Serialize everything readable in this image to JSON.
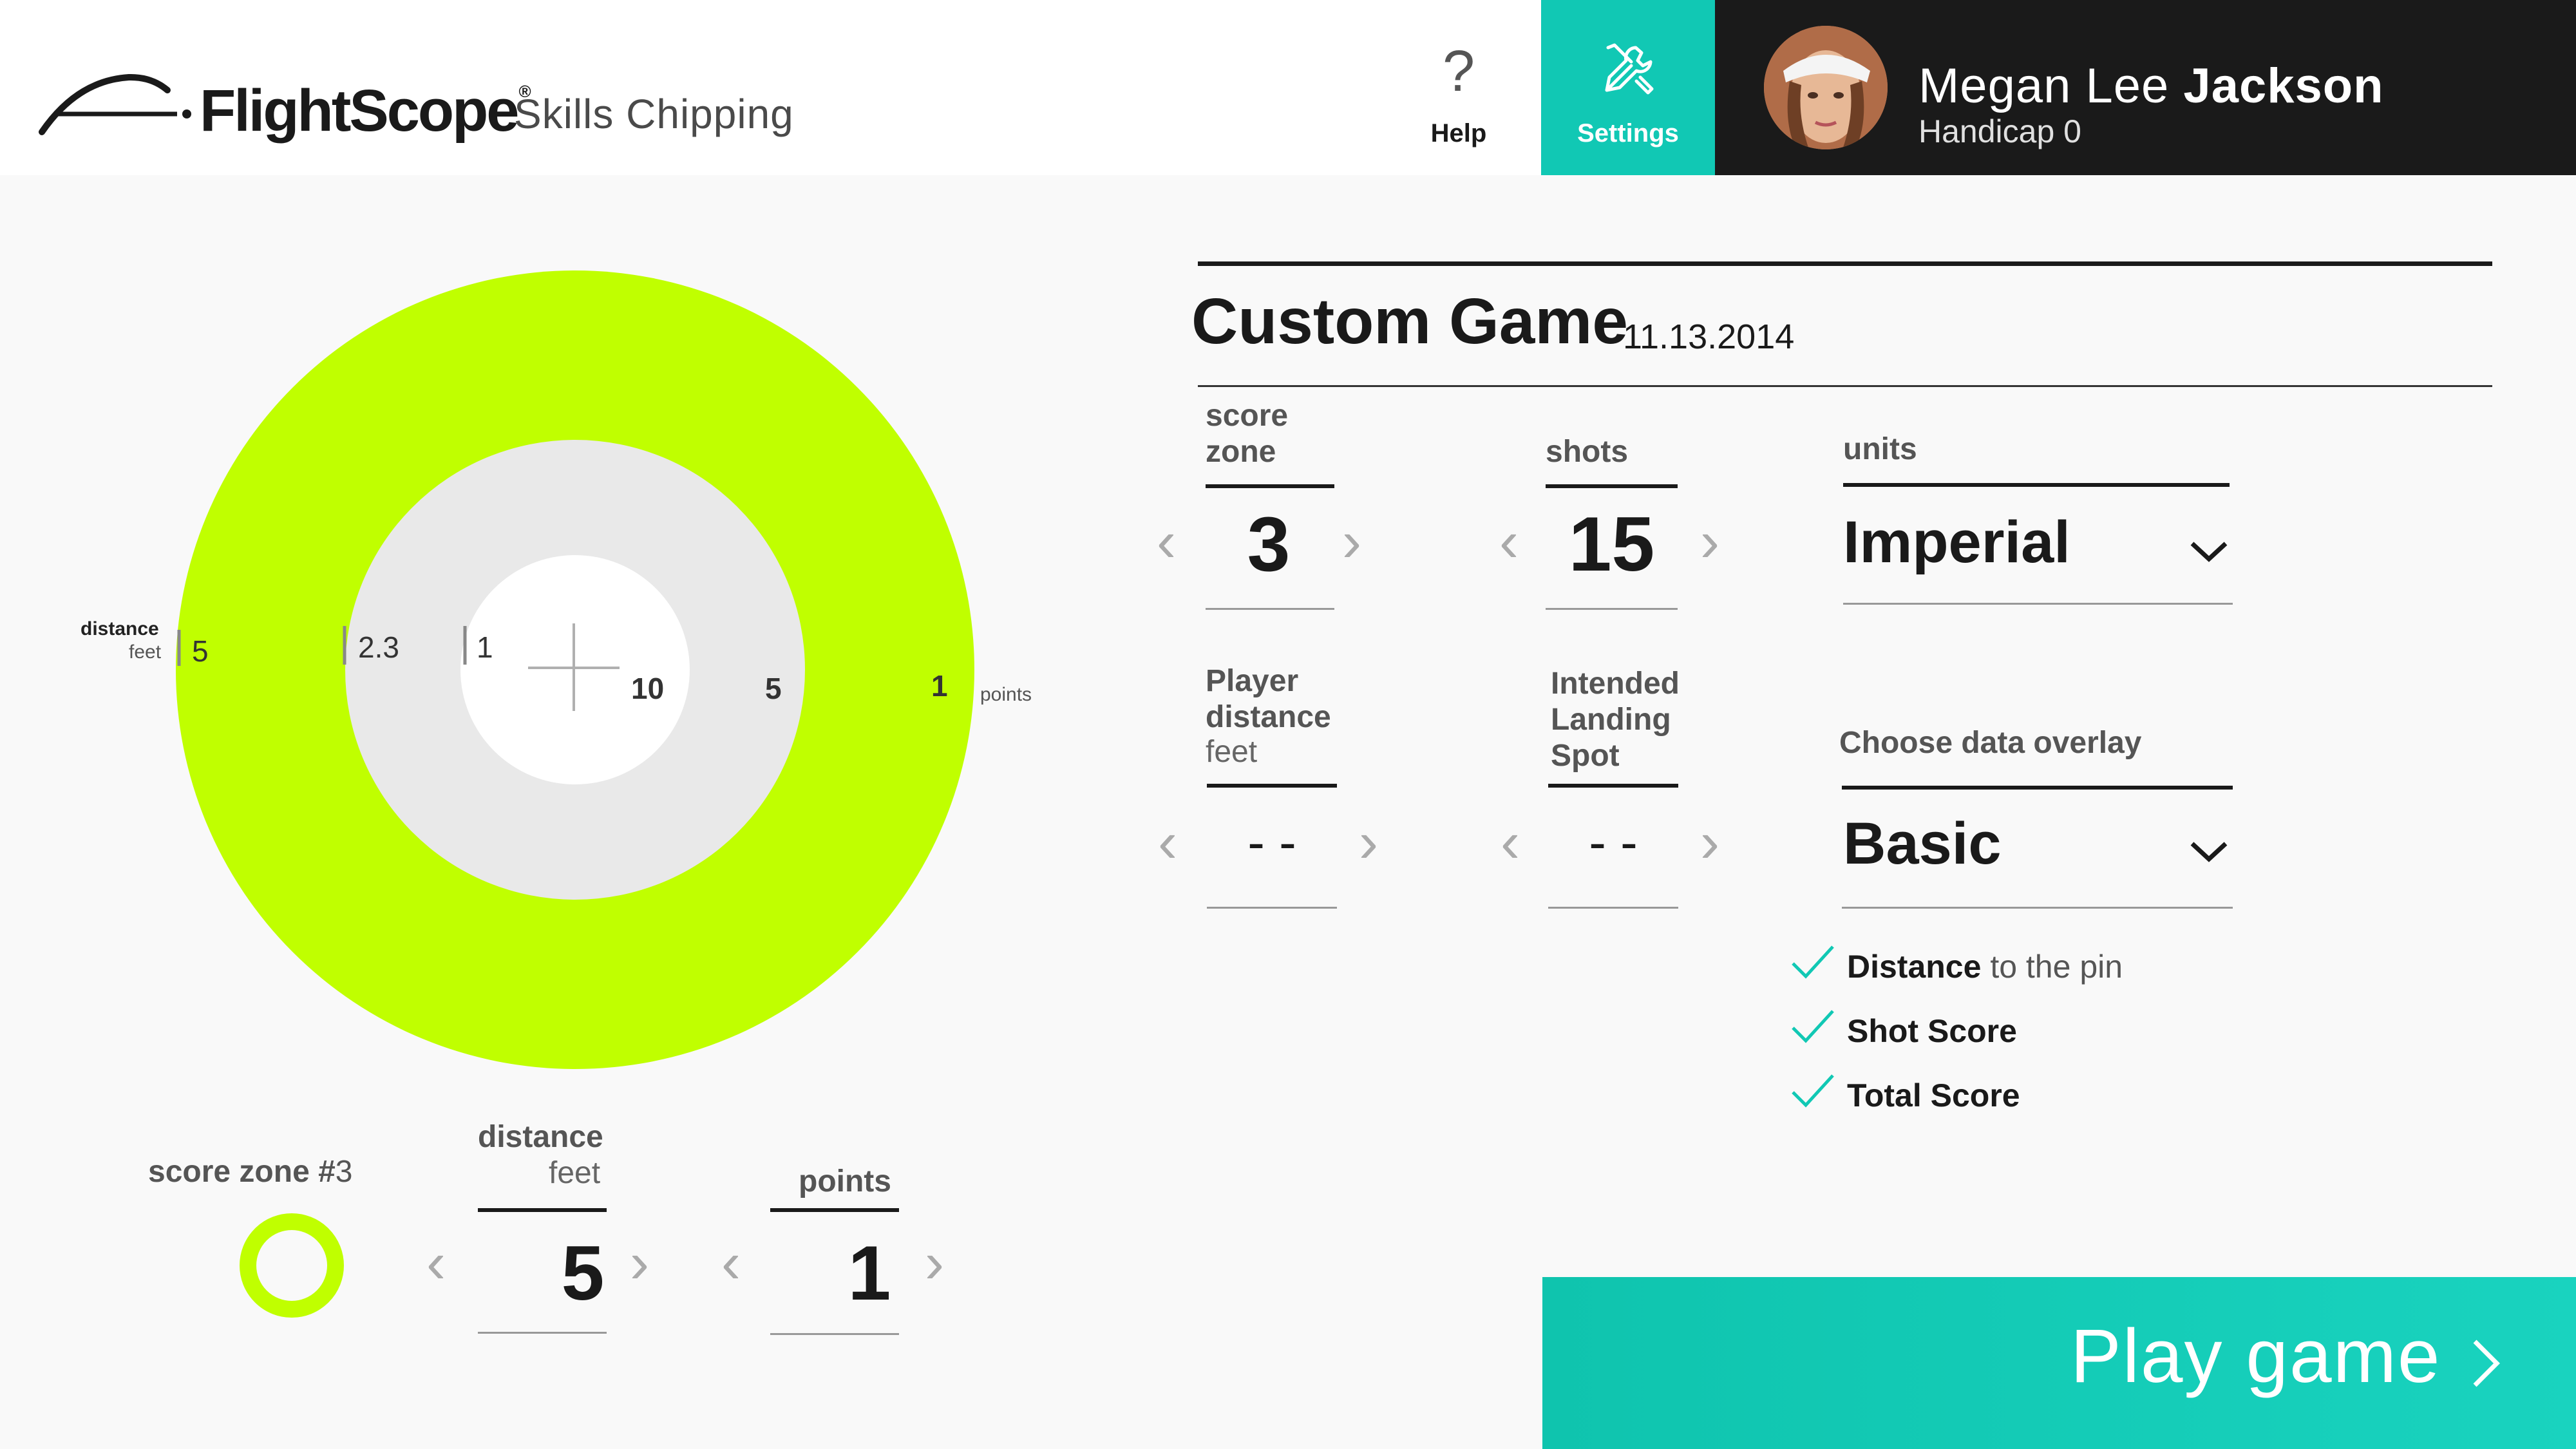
{
  "header": {
    "brand": "FlightScope",
    "brand_reg": "®",
    "app_name": "Skills Chipping",
    "help_symbol": "?",
    "help_label": "Help",
    "settings_label": "Settings",
    "user_first": "Megan Lee",
    "user_last": "Jackson",
    "user_handicap": "Handicap 0"
  },
  "target": {
    "distance_caption": "distance",
    "distance_unit": "feet",
    "distances": [
      "5",
      "2.3",
      "1"
    ],
    "points": [
      "10",
      "5",
      "1"
    ],
    "points_caption": "points",
    "zone_colors": {
      "outer": "#c0ff00",
      "middle": "#e9e9e9",
      "inner": "#ffffff"
    }
  },
  "zone_editor": {
    "title": "score zone #",
    "zone_number": "3",
    "distance_label": "distance",
    "distance_unit": "feet",
    "distance_value": "5",
    "points_label": "points",
    "points_value": "1",
    "prev": "‹",
    "next": "›"
  },
  "game": {
    "title": "Custom Game",
    "date": "11.13.2014",
    "score_zone_label_1": "score",
    "score_zone_label_2": "zone",
    "score_zone_value": "3",
    "shots_label": "shots",
    "shots_value": "15",
    "units_label": "units",
    "units_value": "Imperial",
    "player_distance_label_1": "Player",
    "player_distance_label_2": "distance",
    "player_distance_unit": "feet",
    "player_distance_value": "- -",
    "landing_label_1": "Intended",
    "landing_label_2": "Landing",
    "landing_label_3": "Spot",
    "landing_value": "- -",
    "overlay_label": "Choose data overlay",
    "overlay_value": "Basic",
    "overlay_items": [
      {
        "bold": "Distance",
        "rest": " to the pin"
      },
      {
        "bold": "Shot Score",
        "rest": ""
      },
      {
        "bold": "Total Score",
        "rest": ""
      }
    ]
  },
  "play_button": {
    "label": "Play game"
  },
  "colors": {
    "accent": "#11c8b4",
    "lime": "#c0ff00",
    "dark": "#1a1a1a"
  }
}
